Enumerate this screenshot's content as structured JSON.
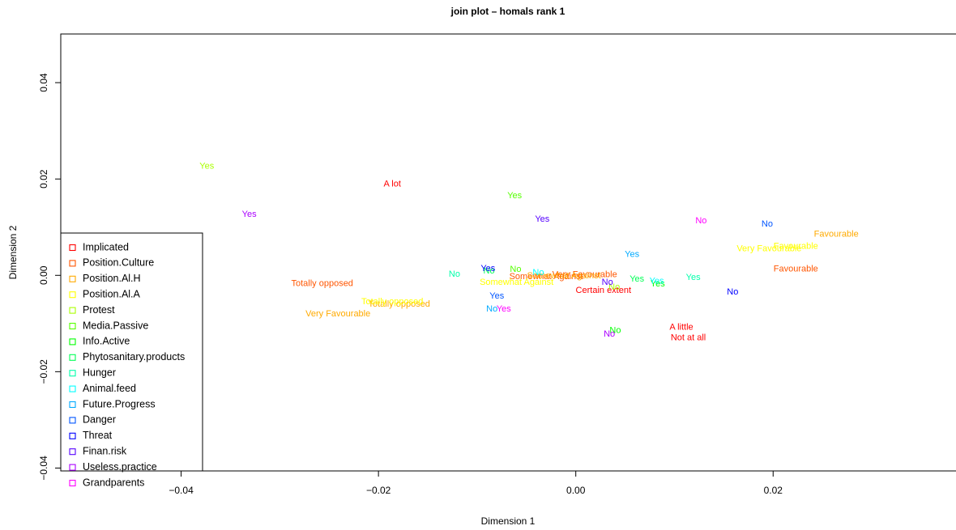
{
  "chart_data": {
    "type": "scatter",
    "title": "join plot – homals rank 1",
    "xlabel": "Dimension 1",
    "ylabel": "Dimension 2",
    "xlim": [
      -0.0522,
      0.0387
    ],
    "ylim": [
      -0.0406,
      0.0501
    ],
    "x_ticks": [
      {
        "v": -0.04,
        "label": "−0.04"
      },
      {
        "v": -0.02,
        "label": "−0.02"
      },
      {
        "v": 0.0,
        "label": "0.00"
      },
      {
        "v": 0.02,
        "label": "0.02"
      }
    ],
    "y_ticks": [
      {
        "v": -0.04,
        "label": "−0.04"
      },
      {
        "v": -0.02,
        "label": "−0.02"
      },
      {
        "v": 0.0,
        "label": "0.00"
      },
      {
        "v": 0.02,
        "label": "0.02"
      },
      {
        "v": 0.04,
        "label": "0.04"
      }
    ],
    "legend_position": "bottom-left",
    "series": [
      {
        "name": "Implicated",
        "color": "#FF0000",
        "points": [
          {
            "x": -0.0186,
            "y": 0.0189,
            "label": "A lot"
          },
          {
            "x": 0.0028,
            "y": -0.0032,
            "label": "Certain extent"
          },
          {
            "x": 0.0107,
            "y": -0.0108,
            "label": "A little"
          },
          {
            "x": 0.0114,
            "y": -0.013,
            "label": "Not at all"
          }
        ]
      },
      {
        "name": "Position.Culture",
        "color": "#FF5500",
        "points": [
          {
            "x": -0.0257,
            "y": -0.0017,
            "label": "Totally opposed"
          },
          {
            "x": -0.003,
            "y": -0.0003,
            "label": "Somewhat Against"
          },
          {
            "x": 0.0009,
            "y": 0.0001,
            "label": "Very Favourable"
          },
          {
            "x": 0.0223,
            "y": 0.0013,
            "label": "Favourable"
          }
        ]
      },
      {
        "name": "Position.Al.H",
        "color": "#FFAA00",
        "points": [
          {
            "x": -0.0241,
            "y": -0.008,
            "label": "Very Favourable"
          },
          {
            "x": -0.0179,
            "y": -0.006,
            "label": "Totally opposed"
          },
          {
            "x": -0.0012,
            "y": -0.0001,
            "label": "Somewhat Against"
          },
          {
            "x": 0.0264,
            "y": 0.0085,
            "label": "Favourable"
          }
        ]
      },
      {
        "name": "Position.Al.A",
        "color": "#FFFF00",
        "points": [
          {
            "x": -0.0186,
            "y": -0.0055,
            "label": "Totally opposed"
          },
          {
            "x": -0.006,
            "y": -0.0015,
            "label": "Somewhat Against"
          },
          {
            "x": 0.0196,
            "y": 0.0055,
            "label": "Very Favourable"
          },
          {
            "x": 0.0223,
            "y": 0.006,
            "label": "Favourable"
          }
        ]
      },
      {
        "name": "Protest",
        "color": "#AAFF00",
        "points": [
          {
            "x": -0.0374,
            "y": 0.0226,
            "label": "Yes"
          },
          {
            "x": 0.0039,
            "y": -0.0025,
            "label": "No"
          }
        ]
      },
      {
        "name": "Media.Passive",
        "color": "#55FF00",
        "points": [
          {
            "x": -0.0062,
            "y": 0.0165,
            "label": "Yes"
          },
          {
            "x": -0.0061,
            "y": 0.0012,
            "label": "No"
          }
        ]
      },
      {
        "name": "Info.Active",
        "color": "#00FF00",
        "points": [
          {
            "x": 0.004,
            "y": -0.0115,
            "label": "No"
          },
          {
            "x": 0.0083,
            "y": -0.0018,
            "label": "Yes"
          }
        ]
      },
      {
        "name": "Phytosanitary.products",
        "color": "#00FF55",
        "points": [
          {
            "x": -0.0088,
            "y": 0.0009,
            "label": "No"
          },
          {
            "x": 0.0062,
            "y": -0.0008,
            "label": "Yes"
          }
        ]
      },
      {
        "name": "Hunger",
        "color": "#00FFAA",
        "points": [
          {
            "x": -0.0123,
            "y": 0.0002,
            "label": "No"
          },
          {
            "x": 0.0119,
            "y": -0.0005,
            "label": "Yes"
          }
        ]
      },
      {
        "name": "Animal.feed",
        "color": "#00FFFF",
        "points": [
          {
            "x": -0.0038,
            "y": 0.0005,
            "label": "No"
          },
          {
            "x": 0.0082,
            "y": -0.0012,
            "label": "Yes"
          }
        ]
      },
      {
        "name": "Future.Progress",
        "color": "#00AAFF",
        "points": [
          {
            "x": 0.0057,
            "y": 0.0043,
            "label": "Yes"
          },
          {
            "x": -0.0085,
            "y": -0.007,
            "label": "No"
          }
        ]
      },
      {
        "name": "Danger",
        "color": "#0055FF",
        "points": [
          {
            "x": -0.008,
            "y": -0.0043,
            "label": "Yes"
          },
          {
            "x": 0.0194,
            "y": 0.0106,
            "label": "No"
          }
        ]
      },
      {
        "name": "Threat",
        "color": "#0000FF",
        "points": [
          {
            "x": -0.0089,
            "y": 0.0014,
            "label": "Yes"
          },
          {
            "x": 0.0159,
            "y": -0.0035,
            "label": "No"
          }
        ]
      },
      {
        "name": "Finan.risk",
        "color": "#5500FF",
        "points": [
          {
            "x": -0.0034,
            "y": 0.0116,
            "label": "Yes"
          },
          {
            "x": 0.0032,
            "y": -0.0015,
            "label": "No"
          }
        ]
      },
      {
        "name": "Useless.practice",
        "color": "#AA00FF",
        "points": [
          {
            "x": -0.0331,
            "y": 0.0126,
            "label": "Yes"
          },
          {
            "x": 0.0034,
            "y": -0.0122,
            "label": "No"
          }
        ]
      },
      {
        "name": "Grandparents",
        "color": "#FF00FF",
        "points": [
          {
            "x": -0.0073,
            "y": -0.007,
            "label": "Yes"
          },
          {
            "x": 0.0127,
            "y": 0.0113,
            "label": "No"
          }
        ]
      }
    ],
    "legend_marker_colors": [
      "#FF0000",
      "#FF5500",
      "#FFAA00",
      "#FFFF00",
      "#AAFF00",
      "#55FF00",
      "#00FF00",
      "#00FF55",
      "#00FFAA",
      "#00FFFF",
      "#00AAFF",
      "#0055FF",
      "#0000FF",
      "#5500FF",
      "#AA00FF",
      "#FF00FF"
    ]
  }
}
